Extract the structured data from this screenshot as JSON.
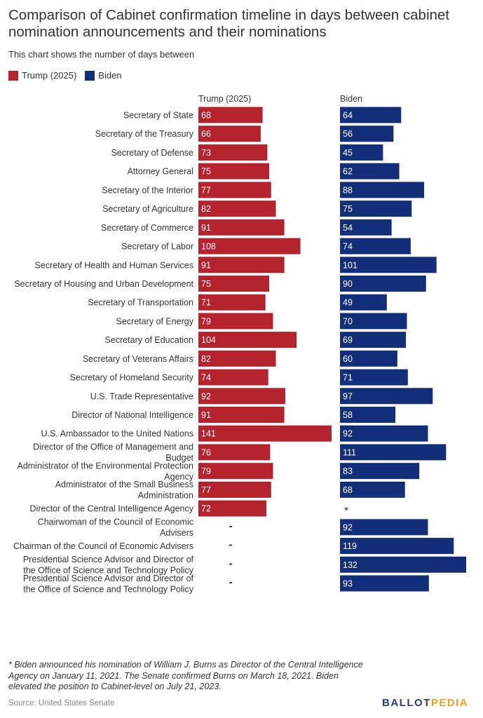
{
  "title": "Comparison of Cabinet confirmation timeline in days between cabinet nomination announcements and their nominations",
  "subtitle": "This chart shows the number of days between",
  "legend": [
    {
      "label": "Trump (2025)",
      "color": "#b5232f"
    },
    {
      "label": "Biden",
      "color": "#142f7a"
    }
  ],
  "footnote": "* Biden announced his nomination of William J. Burns as Director of the Central Intelligence Agency on January 11, 2021. The Senate confirmed Burns on March 18, 2021. Biden elevated the position to Cabinet-level on July 21, 2023.",
  "source": "Source: United States Senate",
  "logo": {
    "part1": "BALLOT",
    "part2": "PEDIA"
  },
  "colors": {
    "trump": "#b5232f",
    "biden": "#142f7a"
  },
  "chart_data": {
    "type": "bar",
    "orientation": "horizontal",
    "column_headers": [
      "Trump (2025)",
      "Biden"
    ],
    "categories": [
      "Secretary of State",
      "Secretary of the Treasury",
      "Secretary of Defense",
      "Attorney General",
      "Secretary of the Interior",
      "Secretary of Agriculture",
      "Secretary of Commerce",
      "Secretary of Labor",
      "Secretary of Health and Human Services",
      "Secretary of Housing and Urban Development",
      "Secretary of Transportation",
      "Secretary of Energy",
      "Secretary of Education",
      "Secretary of Veterans Affairs",
      "Secretary of Homeland Security",
      "U.S. Trade Representative",
      "Director of National Intelligence",
      "U.S. Ambassador to the United Nations",
      "Director of the Office of Management and Budget",
      "Administrator of the Environmental Protection Agency",
      "Administrator of the Small Business Administration",
      "Director of the Central Intelligence Agency",
      "Chairwoman of the Council of Economic Advisers",
      "Chairman of the Council of Economic Advisers",
      "Presidential Science Advisor and Director of the Office of Science and Technology Policy",
      "Presidential Science Advisor and Director of the Office of Science and Technology Policy"
    ],
    "series": [
      {
        "name": "Trump (2025)",
        "values": [
          68,
          66,
          73,
          75,
          77,
          82,
          91,
          108,
          91,
          75,
          71,
          79,
          104,
          82,
          74,
          92,
          91,
          141,
          76,
          79,
          77,
          72,
          null,
          null,
          null,
          null
        ]
      },
      {
        "name": "Biden",
        "values": [
          64,
          56,
          45,
          62,
          88,
          75,
          54,
          74,
          101,
          90,
          49,
          70,
          69,
          60,
          71,
          97,
          58,
          92,
          111,
          83,
          68,
          null,
          92,
          119,
          132,
          93
        ]
      }
    ],
    "missing_markers": {
      "Trump (2025)": "-",
      "Biden": "*"
    },
    "xlim": [
      0,
      141
    ]
  }
}
